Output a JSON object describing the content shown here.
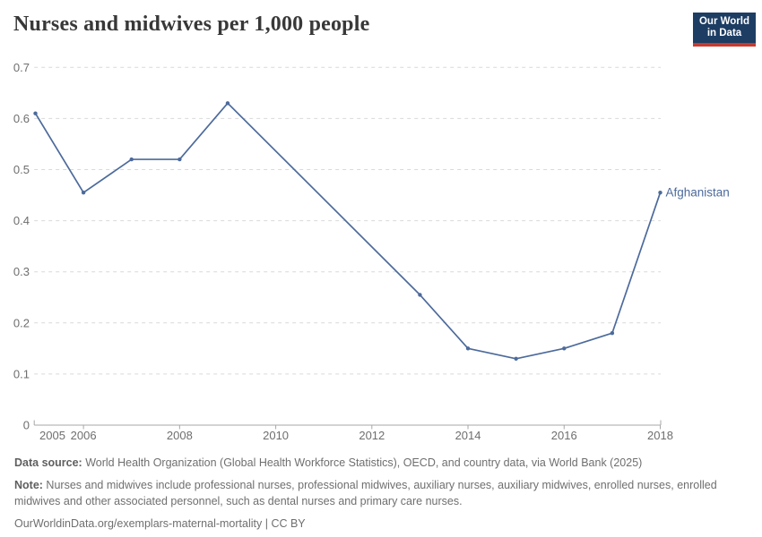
{
  "header": {
    "title": "Nurses and midwives per 1,000 people",
    "logo": {
      "line1": "Our World",
      "line2": "in Data"
    }
  },
  "chart_data": {
    "type": "line",
    "title": "Nurses and midwives per 1,000 people",
    "xlabel": "",
    "ylabel": "",
    "xlim": [
      2005,
      2018
    ],
    "ylim": [
      0,
      0.7
    ],
    "grid": "horizontal dashed gridlines",
    "legend_position": "end-of-line label at last point",
    "series": [
      {
        "name": "Afghanistan",
        "x": [
          2005,
          2006,
          2007,
          2008,
          2009,
          2013,
          2014,
          2015,
          2016,
          2017,
          2018
        ],
        "values": [
          0.61,
          0.455,
          0.52,
          0.52,
          0.63,
          0.255,
          0.15,
          0.13,
          0.15,
          0.18,
          0.455
        ]
      }
    ],
    "x_ticks": {
      "values": [
        2005,
        2006,
        2008,
        2010,
        2012,
        2014,
        2016,
        2018
      ],
      "labels": [
        "2005",
        "2006",
        "2008",
        "2010",
        "2012",
        "2014",
        "2016",
        "2018"
      ]
    },
    "y_ticks": {
      "values": [
        0,
        0.1,
        0.2,
        0.3,
        0.4,
        0.5,
        0.6,
        0.7
      ],
      "labels": [
        "0",
        "0.1",
        "0.2",
        "0.3",
        "0.4",
        "0.5",
        "0.6",
        "0.7"
      ]
    }
  },
  "colors": {
    "series": "#4C6A9C",
    "grid": "#d9d9d9",
    "axis": "#a7a7a7",
    "tick_label": "#6e6e6e",
    "title": "#383838",
    "footer_text": "#6f6f6f",
    "logo_bg": "#1d3d63",
    "logo_accent": "#c93a2e",
    "background": "#ffffff"
  },
  "footer": {
    "data_source_label": "Data source:",
    "data_source_text": " World Health Organization (Global Health Workforce Statistics), OECD, and country data, via World Bank (2025)",
    "note_label": "Note:",
    "note_text": " Nurses and midwives include professional nurses, professional midwives, auxiliary nurses, auxiliary midwives, enrolled nurses, enrolled midwives and other associated personnel, such as dental nurses and primary care nurses.",
    "license_line": "OurWorldinData.org/exemplars-maternal-mortality | CC BY"
  }
}
